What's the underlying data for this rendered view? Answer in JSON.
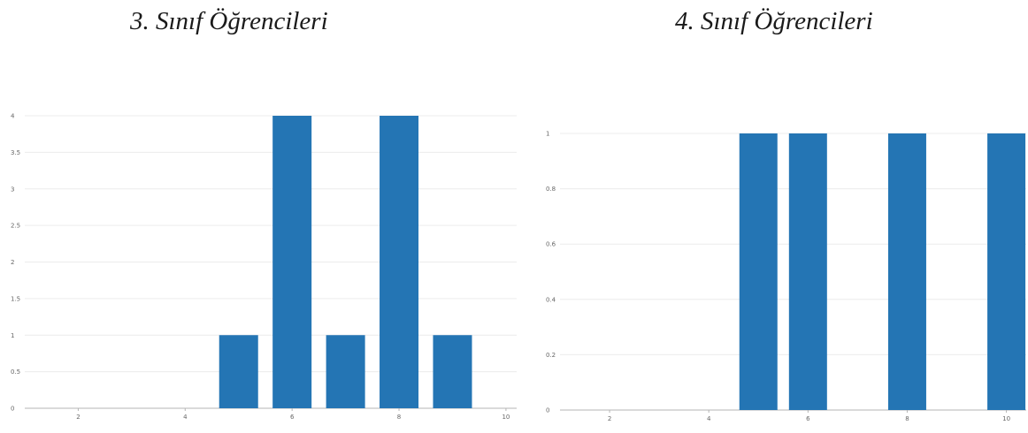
{
  "chart_data": [
    {
      "type": "bar",
      "title": "3. Sınıf Öğrencileri",
      "x": [
        5,
        6,
        7,
        8,
        9
      ],
      "values": [
        1,
        4,
        1,
        4,
        1
      ],
      "xlim": [
        1,
        10.2
      ],
      "ylim": [
        0,
        4
      ],
      "xticks": [
        2,
        4,
        6,
        8,
        10
      ],
      "xtick_labels": [
        "2",
        "4",
        "6",
        "8",
        "10"
      ],
      "yticks": [
        0,
        0.5,
        1,
        1.5,
        2,
        2.5,
        3,
        3.5,
        4
      ],
      "ytick_labels": [
        "0",
        "0.5",
        "1",
        "1.5",
        "2",
        "2.5",
        "3",
        "3.5",
        "4"
      ],
      "bar_color": "#2475b4",
      "grid": true
    },
    {
      "type": "bar",
      "title": "4. Sınıf Öğrencileri",
      "x": [
        5,
        6,
        8,
        10
      ],
      "values": [
        1,
        1,
        1,
        1
      ],
      "xlim": [
        1,
        10.4
      ],
      "ylim": [
        0,
        1
      ],
      "xticks": [
        2,
        4,
        6,
        8,
        10
      ],
      "xtick_labels": [
        "2",
        "4",
        "6",
        "8",
        "10"
      ],
      "yticks": [
        0,
        0.2,
        0.4,
        0.6,
        0.8,
        1
      ],
      "ytick_labels": [
        "0",
        "0.2",
        "0.4",
        "0.6",
        "0.8",
        "1"
      ],
      "bar_color": "#2475b4",
      "grid": true
    }
  ]
}
